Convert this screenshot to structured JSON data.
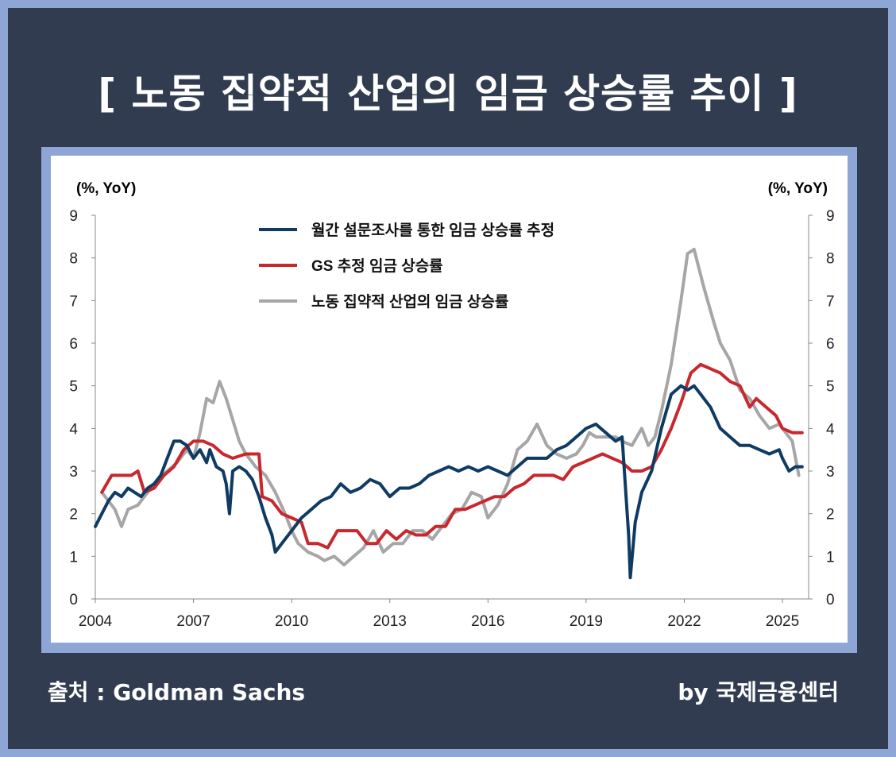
{
  "page": {
    "title": "[ 노동 집약적 산업의 임금 상승률 추이 ]",
    "source": "출처 :  Goldman Sachs",
    "credit": "by 국제금융센터"
  },
  "colors": {
    "background": "#323c50",
    "border": "#8ea6d6",
    "survey": "#0f3b63",
    "gs": "#c8282d",
    "labor": "#a6a6a6"
  },
  "chart_data": {
    "type": "line",
    "title": "",
    "ylabel_left": "(%, YoY)",
    "ylabel_right": "(%, YoY)",
    "xlim": [
      2004.0,
      2025.8
    ],
    "ylim": [
      0,
      9
    ],
    "yticks": [
      "0",
      "1",
      "2",
      "3",
      "4",
      "5",
      "6",
      "7",
      "8",
      "9"
    ],
    "xticks": [
      {
        "value": 2004,
        "label": "2004"
      },
      {
        "value": 2007,
        "label": "2007"
      },
      {
        "value": 2010,
        "label": "2010"
      },
      {
        "value": 2013,
        "label": "2013"
      },
      {
        "value": 2016,
        "label": "2016"
      },
      {
        "value": 2019,
        "label": "2019"
      },
      {
        "value": 2022,
        "label": "2022"
      },
      {
        "value": 2025,
        "label": "2025"
      }
    ],
    "legend_position": "top-center",
    "grid": false,
    "series": [
      {
        "name": "월간 설문조사를 통한 임금 상승률 추정",
        "color": "#0f3b63",
        "points": [
          [
            2004.0,
            1.7
          ],
          [
            2004.2,
            2.0
          ],
          [
            2004.4,
            2.3
          ],
          [
            2004.6,
            2.5
          ],
          [
            2004.8,
            2.4
          ],
          [
            2005.0,
            2.6
          ],
          [
            2005.2,
            2.5
          ],
          [
            2005.4,
            2.4
          ],
          [
            2005.6,
            2.6
          ],
          [
            2005.8,
            2.7
          ],
          [
            2006.0,
            2.9
          ],
          [
            2006.2,
            3.3
          ],
          [
            2006.4,
            3.7
          ],
          [
            2006.6,
            3.7
          ],
          [
            2006.8,
            3.6
          ],
          [
            2007.0,
            3.3
          ],
          [
            2007.2,
            3.5
          ],
          [
            2007.4,
            3.2
          ],
          [
            2007.5,
            3.5
          ],
          [
            2007.7,
            3.1
          ],
          [
            2007.9,
            3.0
          ],
          [
            2008.0,
            2.7
          ],
          [
            2008.1,
            2.0
          ],
          [
            2008.2,
            3.0
          ],
          [
            2008.4,
            3.1
          ],
          [
            2008.6,
            3.0
          ],
          [
            2008.8,
            2.8
          ],
          [
            2009.0,
            2.4
          ],
          [
            2009.2,
            1.9
          ],
          [
            2009.4,
            1.5
          ],
          [
            2009.5,
            1.1
          ],
          [
            2009.7,
            1.3
          ],
          [
            2010.0,
            1.6
          ],
          [
            2010.3,
            1.9
          ],
          [
            2010.6,
            2.1
          ],
          [
            2010.9,
            2.3
          ],
          [
            2011.2,
            2.4
          ],
          [
            2011.5,
            2.7
          ],
          [
            2011.8,
            2.5
          ],
          [
            2012.1,
            2.6
          ],
          [
            2012.4,
            2.8
          ],
          [
            2012.7,
            2.7
          ],
          [
            2013.0,
            2.4
          ],
          [
            2013.3,
            2.6
          ],
          [
            2013.6,
            2.6
          ],
          [
            2013.9,
            2.7
          ],
          [
            2014.2,
            2.9
          ],
          [
            2014.5,
            3.0
          ],
          [
            2014.8,
            3.1
          ],
          [
            2015.1,
            3.0
          ],
          [
            2015.4,
            3.1
          ],
          [
            2015.7,
            3.0
          ],
          [
            2016.0,
            3.1
          ],
          [
            2016.3,
            3.0
          ],
          [
            2016.6,
            2.9
          ],
          [
            2016.9,
            3.1
          ],
          [
            2017.2,
            3.3
          ],
          [
            2017.5,
            3.3
          ],
          [
            2017.8,
            3.3
          ],
          [
            2018.1,
            3.5
          ],
          [
            2018.4,
            3.6
          ],
          [
            2018.7,
            3.8
          ],
          [
            2019.0,
            4.0
          ],
          [
            2019.3,
            4.1
          ],
          [
            2019.6,
            3.9
          ],
          [
            2019.9,
            3.7
          ],
          [
            2020.1,
            3.8
          ],
          [
            2020.3,
            1.5
          ],
          [
            2020.35,
            0.5
          ],
          [
            2020.5,
            1.8
          ],
          [
            2020.7,
            2.5
          ],
          [
            2021.0,
            3.0
          ],
          [
            2021.3,
            4.0
          ],
          [
            2021.6,
            4.8
          ],
          [
            2021.9,
            5.0
          ],
          [
            2022.1,
            4.9
          ],
          [
            2022.3,
            5.0
          ],
          [
            2022.5,
            4.8
          ],
          [
            2022.8,
            4.5
          ],
          [
            2023.1,
            4.0
          ],
          [
            2023.4,
            3.8
          ],
          [
            2023.7,
            3.6
          ],
          [
            2024.0,
            3.6
          ],
          [
            2024.3,
            3.5
          ],
          [
            2024.6,
            3.4
          ],
          [
            2024.9,
            3.5
          ],
          [
            2025.0,
            3.3
          ],
          [
            2025.2,
            3.0
          ],
          [
            2025.4,
            3.1
          ],
          [
            2025.6,
            3.1
          ]
        ]
      },
      {
        "name": "GS 추정 임금 상승률",
        "color": "#c8282d",
        "points": [
          [
            2004.2,
            2.5
          ],
          [
            2004.5,
            2.9
          ],
          [
            2004.8,
            2.9
          ],
          [
            2005.1,
            2.9
          ],
          [
            2005.3,
            3.0
          ],
          [
            2005.5,
            2.5
          ],
          [
            2005.8,
            2.6
          ],
          [
            2006.1,
            2.9
          ],
          [
            2006.4,
            3.1
          ],
          [
            2006.7,
            3.5
          ],
          [
            2007.0,
            3.7
          ],
          [
            2007.3,
            3.7
          ],
          [
            2007.6,
            3.6
          ],
          [
            2007.9,
            3.4
          ],
          [
            2008.2,
            3.3
          ],
          [
            2008.6,
            3.4
          ],
          [
            2009.0,
            3.4
          ],
          [
            2009.1,
            2.4
          ],
          [
            2009.4,
            2.3
          ],
          [
            2009.7,
            2.0
          ],
          [
            2010.0,
            1.9
          ],
          [
            2010.3,
            1.8
          ],
          [
            2010.5,
            1.3
          ],
          [
            2010.8,
            1.3
          ],
          [
            2011.1,
            1.2
          ],
          [
            2011.4,
            1.6
          ],
          [
            2011.7,
            1.6
          ],
          [
            2012.0,
            1.6
          ],
          [
            2012.3,
            1.3
          ],
          [
            2012.6,
            1.3
          ],
          [
            2012.9,
            1.6
          ],
          [
            2013.2,
            1.4
          ],
          [
            2013.5,
            1.6
          ],
          [
            2013.8,
            1.5
          ],
          [
            2014.1,
            1.5
          ],
          [
            2014.4,
            1.7
          ],
          [
            2014.7,
            1.7
          ],
          [
            2015.0,
            2.1
          ],
          [
            2015.3,
            2.1
          ],
          [
            2015.6,
            2.2
          ],
          [
            2015.9,
            2.3
          ],
          [
            2016.2,
            2.4
          ],
          [
            2016.5,
            2.4
          ],
          [
            2016.8,
            2.6
          ],
          [
            2017.1,
            2.7
          ],
          [
            2017.4,
            2.9
          ],
          [
            2017.7,
            2.9
          ],
          [
            2018.0,
            2.9
          ],
          [
            2018.3,
            2.8
          ],
          [
            2018.6,
            3.1
          ],
          [
            2018.9,
            3.2
          ],
          [
            2019.2,
            3.3
          ],
          [
            2019.5,
            3.4
          ],
          [
            2019.8,
            3.3
          ],
          [
            2020.1,
            3.2
          ],
          [
            2020.4,
            3.0
          ],
          [
            2020.7,
            3.0
          ],
          [
            2021.0,
            3.1
          ],
          [
            2021.3,
            3.5
          ],
          [
            2021.6,
            4.0
          ],
          [
            2021.9,
            4.6
          ],
          [
            2022.2,
            5.3
          ],
          [
            2022.5,
            5.5
          ],
          [
            2022.8,
            5.4
          ],
          [
            2023.1,
            5.3
          ],
          [
            2023.4,
            5.1
          ],
          [
            2023.7,
            5.0
          ],
          [
            2024.0,
            4.5
          ],
          [
            2024.2,
            4.7
          ],
          [
            2024.5,
            4.5
          ],
          [
            2024.8,
            4.3
          ],
          [
            2025.0,
            4.0
          ],
          [
            2025.3,
            3.9
          ],
          [
            2025.6,
            3.9
          ]
        ]
      },
      {
        "name": "노동 집약적 산업의 임금 상승률",
        "color": "#a6a6a6",
        "points": [
          [
            2004.2,
            2.5
          ],
          [
            2004.4,
            2.3
          ],
          [
            2004.6,
            2.1
          ],
          [
            2004.8,
            1.7
          ],
          [
            2005.0,
            2.1
          ],
          [
            2005.3,
            2.2
          ],
          [
            2005.6,
            2.5
          ],
          [
            2005.9,
            2.8
          ],
          [
            2006.2,
            3.0
          ],
          [
            2006.5,
            3.2
          ],
          [
            2006.8,
            3.5
          ],
          [
            2007.0,
            3.3
          ],
          [
            2007.2,
            3.9
          ],
          [
            2007.4,
            4.7
          ],
          [
            2007.6,
            4.6
          ],
          [
            2007.8,
            5.1
          ],
          [
            2008.0,
            4.7
          ],
          [
            2008.2,
            4.2
          ],
          [
            2008.4,
            3.7
          ],
          [
            2008.6,
            3.4
          ],
          [
            2008.9,
            3.1
          ],
          [
            2009.2,
            2.9
          ],
          [
            2009.5,
            2.5
          ],
          [
            2009.8,
            2.0
          ],
          [
            2010.0,
            1.6
          ],
          [
            2010.2,
            1.3
          ],
          [
            2010.5,
            1.1
          ],
          [
            2010.8,
            1.0
          ],
          [
            2011.0,
            0.9
          ],
          [
            2011.3,
            1.0
          ],
          [
            2011.6,
            0.8
          ],
          [
            2011.9,
            1.0
          ],
          [
            2012.2,
            1.2
          ],
          [
            2012.5,
            1.6
          ],
          [
            2012.8,
            1.1
          ],
          [
            2013.1,
            1.3
          ],
          [
            2013.4,
            1.3
          ],
          [
            2013.7,
            1.6
          ],
          [
            2014.0,
            1.6
          ],
          [
            2014.3,
            1.4
          ],
          [
            2014.6,
            1.7
          ],
          [
            2014.9,
            2.0
          ],
          [
            2015.2,
            2.1
          ],
          [
            2015.5,
            2.5
          ],
          [
            2015.8,
            2.4
          ],
          [
            2016.0,
            1.9
          ],
          [
            2016.3,
            2.2
          ],
          [
            2016.6,
            2.7
          ],
          [
            2016.9,
            3.5
          ],
          [
            2017.2,
            3.7
          ],
          [
            2017.5,
            4.1
          ],
          [
            2017.8,
            3.6
          ],
          [
            2018.1,
            3.4
          ],
          [
            2018.4,
            3.3
          ],
          [
            2018.7,
            3.4
          ],
          [
            2018.9,
            3.6
          ],
          [
            2019.1,
            3.9
          ],
          [
            2019.3,
            3.8
          ],
          [
            2019.6,
            3.8
          ],
          [
            2019.9,
            3.8
          ],
          [
            2020.1,
            3.7
          ],
          [
            2020.4,
            3.6
          ],
          [
            2020.7,
            4.0
          ],
          [
            2020.9,
            3.6
          ],
          [
            2021.1,
            3.8
          ],
          [
            2021.3,
            4.4
          ],
          [
            2021.6,
            5.5
          ],
          [
            2021.9,
            7.0
          ],
          [
            2022.1,
            8.1
          ],
          [
            2022.3,
            8.2
          ],
          [
            2022.6,
            7.3
          ],
          [
            2022.9,
            6.5
          ],
          [
            2023.1,
            6.0
          ],
          [
            2023.4,
            5.6
          ],
          [
            2023.7,
            4.9
          ],
          [
            2024.0,
            4.7
          ],
          [
            2024.3,
            4.3
          ],
          [
            2024.6,
            4.0
          ],
          [
            2024.9,
            4.1
          ],
          [
            2025.1,
            3.9
          ],
          [
            2025.3,
            3.7
          ],
          [
            2025.5,
            2.9
          ]
        ]
      }
    ]
  }
}
